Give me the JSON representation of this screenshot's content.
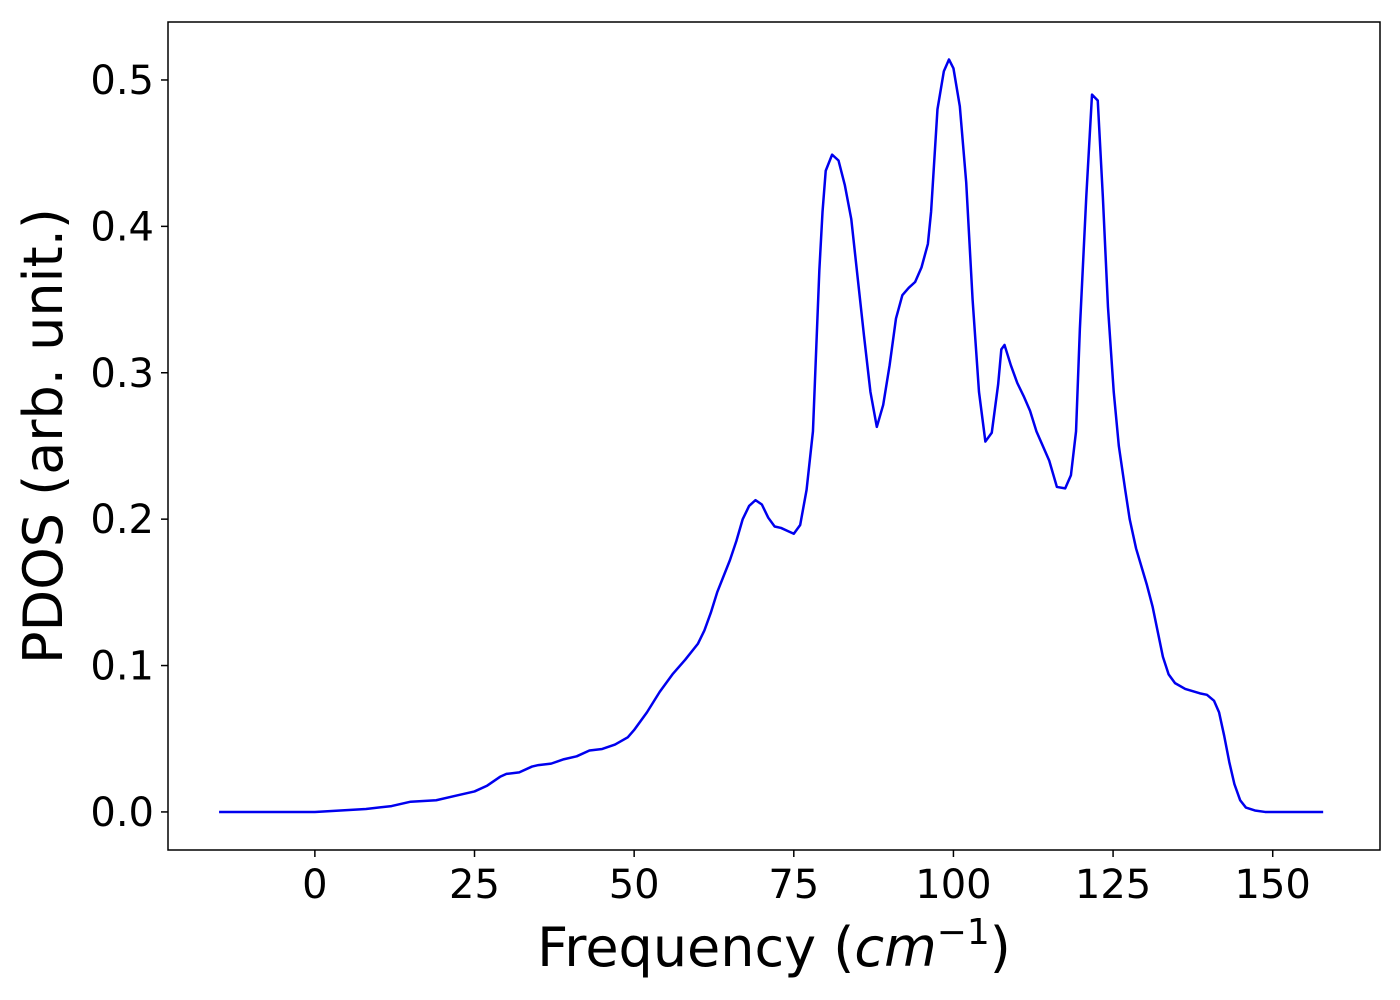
{
  "chart_data": {
    "type": "line",
    "ylabel": "PDOS (arb. unit.)",
    "xlabel": [
      "Frequency (",
      "cm",
      "−1",
      ")"
    ],
    "x": [
      -15,
      0,
      4,
      8,
      12,
      15,
      19,
      22,
      25,
      27,
      29,
      30,
      32,
      34,
      35,
      37,
      39,
      41,
      43,
      45,
      47,
      49,
      50,
      52,
      54,
      56,
      58,
      60,
      61,
      62,
      63,
      65,
      66,
      67,
      68,
      69,
      70,
      71,
      72,
      73,
      74,
      75,
      76,
      77,
      78,
      79,
      79.5,
      80,
      81,
      82,
      83,
      84,
      85,
      86,
      87,
      88,
      89,
      90,
      91,
      92,
      93,
      94,
      95,
      96,
      96.5,
      97.5,
      98.5,
      99.3,
      100,
      101,
      102,
      103,
      104,
      105,
      106,
      107,
      107.5,
      108,
      109,
      110,
      111,
      112,
      113,
      114,
      115,
      116.2,
      117.5,
      118.4,
      119.2,
      119.8,
      120.8,
      121.7,
      122.6,
      123.4,
      124.2,
      125.1,
      125.9,
      126.9,
      127.6,
      128.6,
      130.3,
      131.2,
      132.8,
      133.7,
      134.7,
      136.3,
      138.6,
      139.7,
      140.8,
      141.6,
      142.4,
      143.2,
      144,
      144.9,
      145.8,
      147.2,
      148.8,
      157.9
    ],
    "series": [
      {
        "name": "PDOS",
        "color": "#0000ee",
        "values": [
          0,
          0,
          0.001,
          0.002,
          0.004,
          0.007,
          0.008,
          0.011,
          0.014,
          0.018,
          0.024,
          0.026,
          0.027,
          0.031,
          0.032,
          0.033,
          0.036,
          0.038,
          0.042,
          0.043,
          0.046,
          0.051,
          0.056,
          0.068,
          0.082,
          0.094,
          0.104,
          0.115,
          0.124,
          0.136,
          0.15,
          0.172,
          0.185,
          0.2,
          0.209,
          0.213,
          0.21,
          0.201,
          0.195,
          0.194,
          0.192,
          0.19,
          0.196,
          0.22,
          0.26,
          0.37,
          0.41,
          0.438,
          0.449,
          0.445,
          0.428,
          0.405,
          0.365,
          0.325,
          0.287,
          0.263,
          0.278,
          0.305,
          0.337,
          0.353,
          0.358,
          0.362,
          0.372,
          0.388,
          0.41,
          0.48,
          0.506,
          0.514,
          0.508,
          0.482,
          0.43,
          0.35,
          0.287,
          0.253,
          0.259,
          0.292,
          0.316,
          0.319,
          0.305,
          0.293,
          0.284,
          0.274,
          0.26,
          0.25,
          0.24,
          0.222,
          0.221,
          0.23,
          0.26,
          0.33,
          0.42,
          0.49,
          0.486,
          0.42,
          0.345,
          0.287,
          0.25,
          0.22,
          0.2,
          0.18,
          0.155,
          0.14,
          0.106,
          0.094,
          0.088,
          0.084,
          0.081,
          0.08,
          0.076,
          0.068,
          0.052,
          0.034,
          0.019,
          0.008,
          0.003,
          0.001,
          0,
          0
        ]
      }
    ],
    "xlim": [
      -23,
      166.8
    ],
    "xticks": [
      0,
      25,
      50,
      75,
      100,
      125,
      150
    ],
    "ylim": [
      -0.026,
      0.5396
    ],
    "yticks": [
      {
        "value": 0,
        "label": "0.0"
      },
      0.1,
      0.2,
      0.3,
      0.4,
      0.5
    ],
    "grid": false
  }
}
